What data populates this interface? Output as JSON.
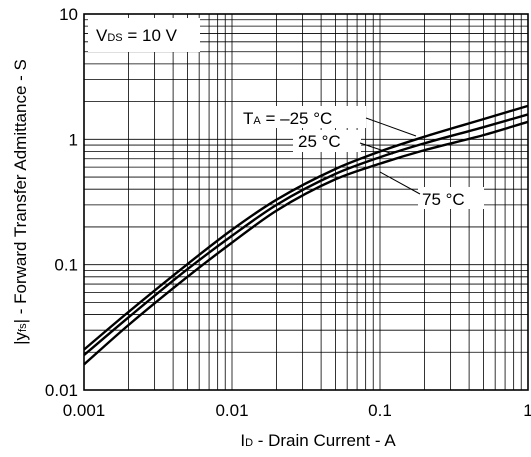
{
  "chart_data": {
    "type": "line",
    "xscale": "log",
    "yscale": "log",
    "xlim": [
      0.001,
      1
    ],
    "ylim": [
      0.01,
      10
    ],
    "grid": true,
    "xlabel": {
      "sym": "I",
      "sub": "D",
      "rest": " - Drain Current - A"
    },
    "ylabel": {
      "pre": "|y",
      "sub": "fs",
      "rest": "| - Forward Transfer Admittance - S"
    },
    "condition": {
      "sym": "V",
      "sub": "DS",
      "rest": " = 10 V"
    },
    "x_ticks": [
      {
        "value": 0.001,
        "label": "0.001"
      },
      {
        "value": 0.01,
        "label": "0.01"
      },
      {
        "value": 0.1,
        "label": "0.1"
      },
      {
        "value": 1,
        "label": "1"
      }
    ],
    "y_ticks": [
      {
        "value": 0.01,
        "label": "0.01"
      },
      {
        "value": 0.1,
        "label": "0.1"
      },
      {
        "value": 1,
        "label": "1"
      },
      {
        "value": 10,
        "label": "10"
      }
    ],
    "series": [
      {
        "name": "T_A = -25 °C",
        "x": [
          0.001,
          0.002,
          0.005,
          0.01,
          0.02,
          0.05,
          0.1,
          0.2,
          0.5,
          1
        ],
        "y": [
          0.021,
          0.042,
          0.101,
          0.19,
          0.33,
          0.58,
          0.8,
          1.05,
          1.45,
          1.85
        ]
      },
      {
        "name": "25 °C",
        "x": [
          0.001,
          0.002,
          0.005,
          0.01,
          0.02,
          0.05,
          0.1,
          0.2,
          0.5,
          1
        ],
        "y": [
          0.019,
          0.038,
          0.092,
          0.17,
          0.3,
          0.53,
          0.72,
          0.93,
          1.25,
          1.58
        ]
      },
      {
        "name": "75 °C",
        "x": [
          0.001,
          0.002,
          0.005,
          0.01,
          0.02,
          0.05,
          0.1,
          0.2,
          0.5,
          1
        ],
        "y": [
          0.016,
          0.033,
          0.08,
          0.15,
          0.27,
          0.48,
          0.64,
          0.82,
          1.08,
          1.38
        ]
      }
    ],
    "annotations": {
      "series0": {
        "sym": "T",
        "sub": "A",
        "rest": " = –25 °C"
      },
      "series1": "25 °C",
      "series2": "75 °C"
    }
  }
}
